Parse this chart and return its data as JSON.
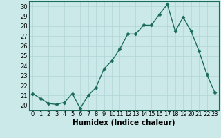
{
  "xlabel": "Humidex (Indice chaleur)",
  "ylabel": "",
  "x": [
    0,
    1,
    2,
    3,
    4,
    5,
    6,
    7,
    8,
    9,
    10,
    11,
    12,
    13,
    14,
    15,
    16,
    17,
    18,
    19,
    20,
    21,
    22,
    23
  ],
  "y": [
    21.2,
    20.7,
    20.2,
    20.1,
    20.3,
    21.2,
    19.7,
    21.0,
    21.8,
    23.7,
    24.5,
    25.7,
    27.2,
    27.2,
    28.1,
    28.1,
    29.2,
    30.2,
    27.5,
    28.9,
    27.5,
    25.5,
    23.1,
    21.3
  ],
  "line_color": "#1a6b5a",
  "marker": "D",
  "marker_size": 2.5,
  "bg_color": "#cce9e9",
  "grid_color": "#b0d4d4",
  "ylim": [
    19.5,
    30.5
  ],
  "yticks": [
    20,
    21,
    22,
    23,
    24,
    25,
    26,
    27,
    28,
    29,
    30
  ],
  "xticks": [
    0,
    1,
    2,
    3,
    4,
    5,
    6,
    7,
    8,
    9,
    10,
    11,
    12,
    13,
    14,
    15,
    16,
    17,
    18,
    19,
    20,
    21,
    22,
    23
  ],
  "tick_fontsize": 6,
  "xlabel_fontsize": 7.5,
  "line_width": 1.0
}
